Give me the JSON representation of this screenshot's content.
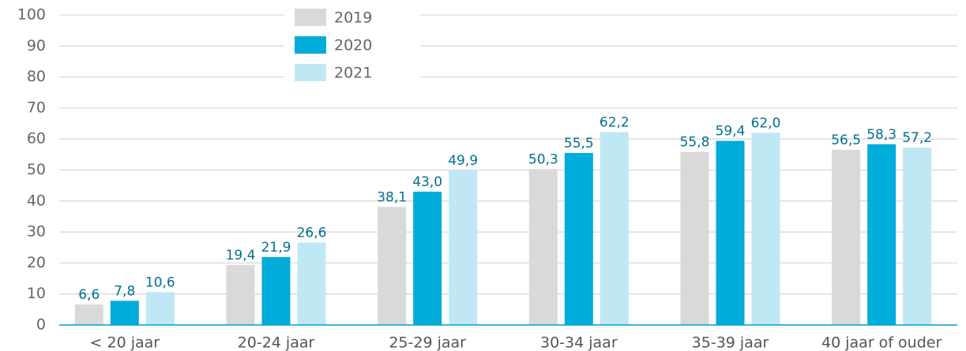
{
  "chart_data": {
    "type": "bar",
    "categories": [
      "< 20 jaar",
      "20-24 jaar",
      "25-29 jaar",
      "30-34 jaar",
      "35-39 jaar",
      "40 jaar of ouder"
    ],
    "series": [
      {
        "name": "2019",
        "color": "#d9d9d9",
        "values": [
          6.6,
          19.4,
          38.1,
          50.3,
          55.8,
          56.5
        ],
        "value_labels": [
          "6,6",
          "19,4",
          "38,1",
          "50,3",
          "55,8",
          "56,5"
        ]
      },
      {
        "name": "2020",
        "color": "#00acd9",
        "values": [
          7.8,
          21.9,
          43.0,
          55.5,
          59.4,
          58.3
        ],
        "value_labels": [
          "7,8",
          "21,9",
          "43,0",
          "55,5",
          "59,4",
          "58,3"
        ]
      },
      {
        "name": "2021",
        "color": "#bfe8f4",
        "values": [
          10.6,
          26.6,
          49.9,
          62.2,
          62.0,
          57.2
        ],
        "value_labels": [
          "10,6",
          "26,6",
          "49,9",
          "62,2",
          "62,0",
          "57,2"
        ]
      }
    ],
    "ylim": [
      0,
      100
    ],
    "yticks": [
      0,
      10,
      20,
      30,
      40,
      50,
      60,
      70,
      80,
      90,
      100
    ],
    "grid": true,
    "legend": "top"
  }
}
